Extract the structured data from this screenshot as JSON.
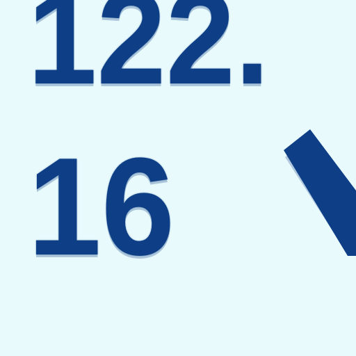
{
  "display": {
    "top_value": "122.",
    "bottom_value": "16",
    "arrow_icon": "down-right-arrow-icon",
    "colors": {
      "background": "#e8fafc",
      "text": "#0e3f86"
    }
  }
}
